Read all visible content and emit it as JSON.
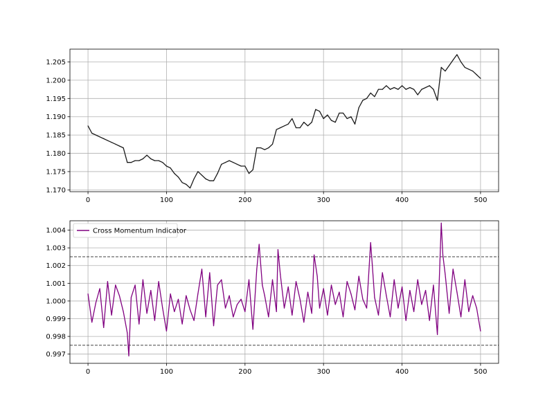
{
  "chart_data": [
    {
      "type": "line",
      "title": "",
      "xlabel": "",
      "ylabel": "",
      "xlim": [
        -23,
        523
      ],
      "ylim": [
        1.1695,
        1.2085
      ],
      "grid": true,
      "x_ticks": [
        0,
        100,
        200,
        300,
        400,
        500
      ],
      "x_tick_labels": [
        "0",
        "100",
        "200",
        "300",
        "400",
        "500"
      ],
      "y_ticks": [
        1.17,
        1.175,
        1.18,
        1.185,
        1.19,
        1.195,
        1.2,
        1.205
      ],
      "y_tick_labels": [
        "1.170",
        "1.175",
        "1.180",
        "1.185",
        "1.190",
        "1.195",
        "1.200",
        "1.205"
      ],
      "colors": {
        "line": "#1a1a1a",
        "grid": "#b0b0b0"
      },
      "series": [
        {
          "x": [
            0,
            5,
            10,
            15,
            20,
            25,
            30,
            35,
            40,
            45,
            50,
            55,
            60,
            65,
            70,
            75,
            80,
            85,
            90,
            95,
            100,
            105,
            110,
            115,
            120,
            125,
            130,
            135,
            140,
            145,
            150,
            155,
            160,
            165,
            170,
            175,
            180,
            185,
            190,
            195,
            200,
            205,
            210,
            215,
            220,
            225,
            230,
            235,
            240,
            245,
            250,
            255,
            260,
            265,
            270,
            275,
            280,
            285,
            290,
            295,
            300,
            305,
            310,
            315,
            320,
            325,
            330,
            335,
            340,
            345,
            350,
            355,
            360,
            365,
            370,
            375,
            380,
            385,
            390,
            395,
            400,
            405,
            410,
            415,
            420,
            425,
            430,
            435,
            440,
            445,
            450,
            455,
            460,
            465,
            470,
            475,
            480,
            485,
            490,
            495,
            500
          ],
          "values": [
            1.1875,
            1.1855,
            1.185,
            1.1845,
            1.184,
            1.1835,
            1.183,
            1.1825,
            1.182,
            1.1815,
            1.1775,
            1.1775,
            1.178,
            1.178,
            1.1785,
            1.1795,
            1.1785,
            1.178,
            1.178,
            1.1775,
            1.1765,
            1.176,
            1.1745,
            1.1735,
            1.172,
            1.1715,
            1.1705,
            1.173,
            1.175,
            1.174,
            1.173,
            1.1725,
            1.1725,
            1.1745,
            1.177,
            1.1775,
            1.178,
            1.1775,
            1.177,
            1.1765,
            1.1765,
            1.1745,
            1.1755,
            1.1815,
            1.1815,
            1.181,
            1.1815,
            1.1825,
            1.1865,
            1.187,
            1.1875,
            1.188,
            1.1895,
            1.187,
            1.187,
            1.1885,
            1.1875,
            1.1885,
            1.192,
            1.1915,
            1.1895,
            1.1905,
            1.189,
            1.1885,
            1.191,
            1.191,
            1.1895,
            1.19,
            1.188,
            1.1925,
            1.1945,
            1.195,
            1.1965,
            1.1955,
            1.1975,
            1.1975,
            1.1985,
            1.1975,
            1.198,
            1.1975,
            1.1985,
            1.1975,
            1.198,
            1.1975,
            1.196,
            1.1975,
            1.198,
            1.1985,
            1.1975,
            1.1945,
            1.2035,
            1.2025,
            1.204,
            1.2055,
            1.207,
            1.205,
            1.2035,
            1.203,
            1.2025,
            1.2015,
            1.2005
          ]
        }
      ]
    },
    {
      "type": "line",
      "title": "",
      "xlabel": "",
      "ylabel": "",
      "xlim": [
        -23,
        523
      ],
      "ylim": [
        0.99648,
        1.00453
      ],
      "grid": true,
      "legend": "top-left",
      "x_ticks": [
        0,
        100,
        200,
        300,
        400,
        500
      ],
      "x_tick_labels": [
        "0",
        "100",
        "200",
        "300",
        "400",
        "500"
      ],
      "y_ticks": [
        0.997,
        0.998,
        0.999,
        1.0,
        1.001,
        1.002,
        1.003,
        1.004
      ],
      "y_tick_labels": [
        "0.997",
        "0.998",
        "0.999",
        "1.000",
        "1.001",
        "1.002",
        "1.003",
        "1.004"
      ],
      "thresholds": [
        1.0025,
        0.9975
      ],
      "colors": {
        "line": "#800080",
        "grid": "#b0b0b0",
        "threshold": "#404040"
      },
      "series": [
        {
          "name": "Cross Momentum Indicator",
          "x": [
            0,
            5,
            10,
            15,
            20,
            25,
            30,
            35,
            40,
            45,
            50,
            52,
            55,
            60,
            65,
            70,
            75,
            80,
            85,
            90,
            95,
            100,
            105,
            110,
            115,
            120,
            125,
            130,
            135,
            140,
            145,
            150,
            155,
            160,
            165,
            170,
            175,
            180,
            185,
            190,
            195,
            200,
            205,
            210,
            215,
            218,
            222,
            225,
            230,
            235,
            240,
            242,
            245,
            250,
            255,
            260,
            265,
            270,
            275,
            280,
            285,
            288,
            292,
            295,
            300,
            305,
            310,
            315,
            320,
            325,
            330,
            335,
            340,
            345,
            350,
            355,
            360,
            362,
            365,
            370,
            375,
            380,
            385,
            390,
            395,
            400,
            405,
            410,
            415,
            420,
            425,
            430,
            435,
            440,
            445,
            450,
            452,
            455,
            460,
            465,
            470,
            475,
            480,
            485,
            490,
            495,
            500
          ],
          "values": [
            1.0004,
            0.9988,
            0.9999,
            1.0007,
            0.9985,
            1.0011,
            0.9992,
            1.0009,
            1.0003,
            0.9994,
            0.9982,
            0.9969,
            1.0002,
            1.0009,
            0.9987,
            1.0012,
            0.9993,
            1.0006,
            0.9989,
            1.0011,
            0.9996,
            0.9983,
            1.0004,
            0.9994,
            1.0001,
            0.9987,
            1.0003,
            0.9995,
            0.9989,
            1.0004,
            1.0018,
            0.9991,
            1.0016,
            0.9986,
            1.0009,
            1.0012,
            0.9996,
            1.0003,
            0.9991,
            0.9998,
            1.0001,
            0.9994,
            1.0012,
            0.9984,
            1.0018,
            1.0032,
            1.0009,
            1.0003,
            0.9991,
            1.0012,
            0.9994,
            1.0029,
            1.0015,
            0.9996,
            1.0008,
            0.9992,
            1.0011,
            1.0001,
            0.9988,
            1.0005,
            0.9993,
            1.0026,
            1.0014,
            0.9996,
            1.0007,
            0.9992,
            1.0009,
            0.9998,
            1.0005,
            0.9991,
            1.0011,
            1.0004,
            0.9995,
            1.0014,
            1.0001,
            0.9996,
            1.0033,
            1.0021,
            1.0002,
            0.9992,
            1.0016,
            1.0003,
            0.9991,
            1.0012,
            0.9996,
            1.0008,
            0.9989,
            1.0006,
            0.9994,
            1.0012,
            0.9998,
            1.0006,
            0.9989,
            1.0009,
            0.9981,
            1.0044,
            1.0026,
            1.0015,
            0.9993,
            1.0018,
            1.0005,
            0.9991,
            1.0012,
            0.9994,
            1.0003,
            0.9996,
            0.9983
          ]
        }
      ]
    }
  ]
}
